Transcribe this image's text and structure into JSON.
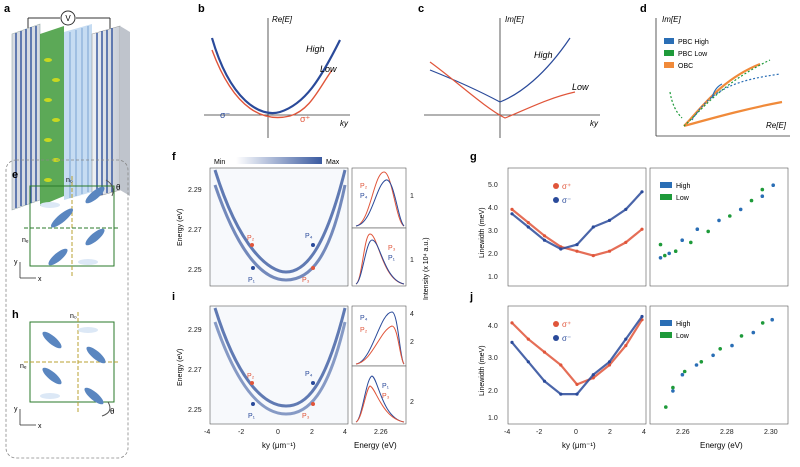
{
  "panels": {
    "a": "a",
    "b": "b",
    "c": "c",
    "d": "d",
    "e": "e",
    "f": "f",
    "g": "g",
    "h": "h",
    "i": "i",
    "j": "j"
  },
  "colors": {
    "high_blue": "#2a4a9a",
    "low_red": "#e0553a",
    "pbc_high": "#2a6eb5",
    "pbc_low": "#1e9a3a",
    "obc": "#f08a3a",
    "map_min": "#ffffff",
    "map_max": "#3a5aa0",
    "lc_green": "#3f9a3a",
    "plate_blue": "#9ac0e8"
  },
  "schematic": {
    "voltage_symbol": "V",
    "e_top": "n₀",
    "e_side": "nₑ",
    "e_angle": "θ",
    "h_top": "n₀",
    "h_side": "nₑ",
    "h_angle": "θ",
    "axis_y": "y",
    "axis_x": "x"
  },
  "panel_b": {
    "ylabel": "Re[E]",
    "xlabel": "ky",
    "high": "High",
    "low": "Low",
    "sigma_minus": "σ⁻",
    "sigma_plus": "σ⁺"
  },
  "panel_c": {
    "ylabel": "Im[E]",
    "xlabel": "ky",
    "high": "High",
    "low": "Low"
  },
  "panel_d": {
    "ylabel": "Im[E]",
    "xlabel": "Re[E]",
    "legend": [
      "PBC High",
      "PBC Low",
      "OBC"
    ]
  },
  "panel_f": {
    "colorbar_min": "Min",
    "colorbar_max": "Max",
    "ylabel": "Energy (eV)",
    "yticks": [
      "2.29",
      "2.27",
      "2.25"
    ],
    "points": [
      "P₂",
      "P₄",
      "P₁",
      "P₃"
    ]
  },
  "panel_i": {
    "ylabel": "Energy (eV)",
    "yticks": [
      "2.29",
      "2.27",
      "2.25"
    ],
    "points": [
      "P₂",
      "P₄",
      "P₁",
      "P₃"
    ],
    "xticks": [
      "-4",
      "-2",
      "0",
      "2",
      "4"
    ],
    "xlabel": "ky (μm⁻¹)"
  },
  "spectra_f": {
    "top_labels": [
      "P₂",
      "P₄"
    ],
    "bottom_labels": [
      "P₃",
      "P₁"
    ],
    "ticks": [
      "1",
      "1"
    ],
    "ylabel": "Intensity (x 10⁴ a.u.)"
  },
  "spectra_i": {
    "top_labels": [
      "P₄",
      "P₂"
    ],
    "bottom_labels": [
      "P₁",
      "P₃"
    ],
    "ticks": [
      "4",
      "2",
      "2"
    ],
    "xtick": "2.26",
    "xlabel": "Energy (eV)"
  },
  "panel_g": {
    "ylabel": "Linewidth (meV)",
    "yticks": [
      "5.0",
      "4.0",
      "3.0",
      "2.0",
      "1.0"
    ],
    "legend": [
      "σ⁺",
      "σ⁻"
    ],
    "legend2": [
      "High",
      "Low"
    ]
  },
  "panel_j": {
    "ylabel": "Linewidth (meV)",
    "yticks": [
      "4.0",
      "3.0",
      "2.0",
      "1.0"
    ],
    "xticks": [
      "-4",
      "-2",
      "0",
      "2",
      "4"
    ],
    "xlabel": "ky (μm⁻¹)",
    "legend": [
      "σ⁺",
      "σ⁻"
    ],
    "legend2": [
      "High",
      "Low"
    ],
    "xticks2": [
      "2.26",
      "2.28",
      "2.30"
    ],
    "xlabel2": "Energy (eV)"
  },
  "chart_data": [
    {
      "type": "line",
      "panel": "g",
      "ylabel": "Linewidth (meV)",
      "xlim": [
        -4,
        4
      ],
      "ylim": [
        0.5,
        5.5
      ],
      "series": [
        {
          "name": "σ⁺",
          "x": [
            -4,
            -3,
            -2,
            -1,
            0,
            1,
            2,
            3,
            4
          ],
          "y": [
            3.8,
            3.2,
            2.6,
            2.1,
            1.9,
            1.7,
            1.9,
            2.3,
            2.9
          ]
        },
        {
          "name": "σ⁻",
          "x": [
            -4,
            -3,
            -2,
            -1,
            0,
            1,
            2,
            3,
            4
          ],
          "y": [
            3.6,
            3.0,
            2.4,
            2.0,
            2.2,
            3.0,
            3.3,
            3.8,
            4.6
          ]
        }
      ]
    },
    {
      "type": "line",
      "panel": "j",
      "ylabel": "Linewidth (meV)",
      "xlabel": "ky (μm⁻¹)",
      "xlim": [
        -4,
        4
      ],
      "ylim": [
        0.8,
        4.2
      ],
      "series": [
        {
          "name": "σ⁺",
          "x": [
            -4,
            -3,
            -2,
            -1,
            0,
            1,
            2,
            3,
            4
          ],
          "y": [
            3.8,
            3.3,
            2.9,
            2.5,
            1.9,
            2.1,
            2.5,
            3.1,
            3.9
          ]
        },
        {
          "name": "σ⁻",
          "x": [
            -4,
            -3,
            -2,
            -1,
            0,
            1,
            2,
            3,
            4
          ],
          "y": [
            3.2,
            2.6,
            2.0,
            1.6,
            1.6,
            2.2,
            2.6,
            3.3,
            4.0
          ]
        }
      ]
    },
    {
      "type": "scatter",
      "panel": "g-right",
      "ylim": [
        0.5,
        5.5
      ],
      "series": [
        {
          "name": "High",
          "x": [
            2.248,
            2.252,
            2.258,
            2.265,
            2.275,
            2.285,
            2.295,
            2.3
          ],
          "y": [
            1.6,
            1.8,
            2.4,
            2.9,
            3.3,
            3.8,
            4.4,
            4.9
          ]
        },
        {
          "name": "Low",
          "x": [
            2.248,
            2.25,
            2.255,
            2.262,
            2.27,
            2.28,
            2.29,
            2.295
          ],
          "y": [
            2.2,
            1.7,
            1.9,
            2.3,
            2.8,
            3.5,
            4.2,
            4.7
          ]
        }
      ]
    },
    {
      "type": "scatter",
      "panel": "j-right",
      "xlabel": "Energy (eV)",
      "xlim": [
        2.25,
        2.305
      ],
      "ylim": [
        0.8,
        4.2
      ],
      "series": [
        {
          "name": "High",
          "x": [
            2.258,
            2.262,
            2.268,
            2.275,
            2.283,
            2.292,
            2.3
          ],
          "y": [
            1.7,
            2.2,
            2.5,
            2.8,
            3.1,
            3.5,
            3.9
          ]
        },
        {
          "name": "Low",
          "x": [
            2.255,
            2.258,
            2.263,
            2.27,
            2.278,
            2.287,
            2.296
          ],
          "y": [
            1.2,
            1.8,
            2.3,
            2.6,
            3.0,
            3.4,
            3.8
          ]
        }
      ]
    }
  ]
}
